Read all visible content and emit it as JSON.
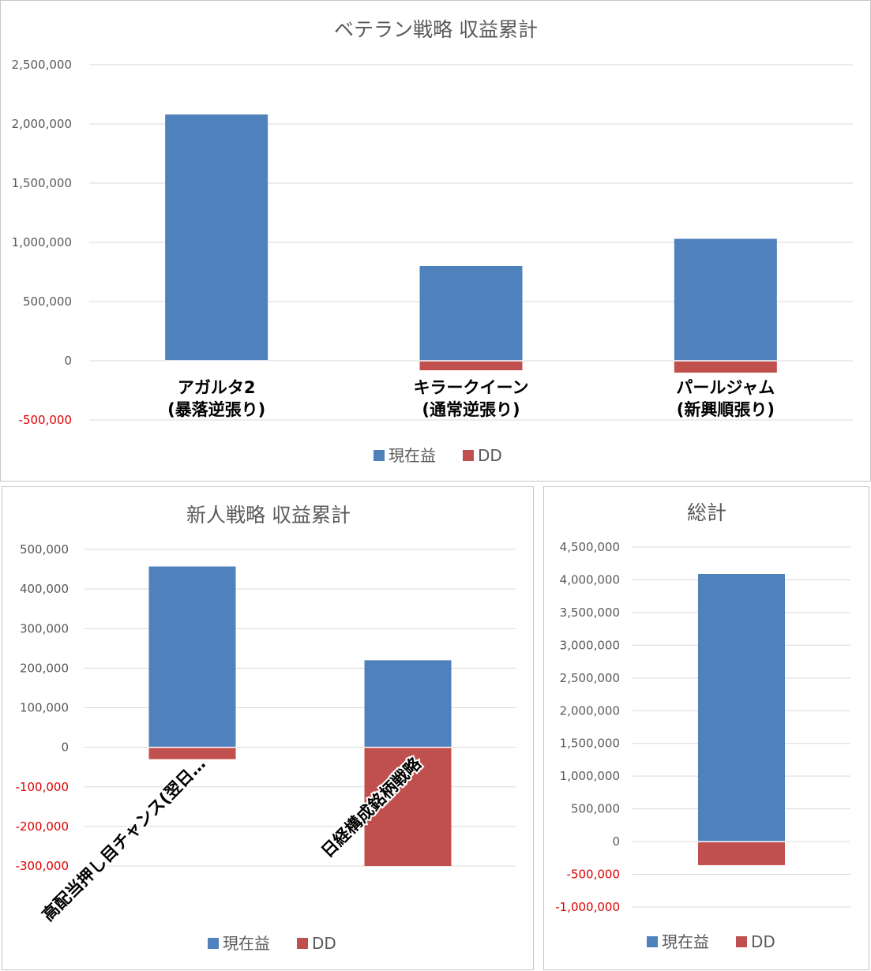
{
  "colors": {
    "current_profit": "#4f81bd",
    "dd": "#c0504d"
  },
  "chart_data": [
    {
      "id": "veteran",
      "type": "bar",
      "title": "ベテラン戦略 収益累計",
      "categories": [
        [
          "アガルタ2",
          "(暴落逆張り)"
        ],
        [
          "キラークイーン",
          "(通常逆張り)"
        ],
        [
          "パールジャム",
          "(新興順張り)"
        ]
      ],
      "series": [
        {
          "name": "現在益",
          "values": [
            2080000,
            800000,
            1030000
          ]
        },
        {
          "name": "DD",
          "values": [
            0,
            -80000,
            -100000
          ]
        }
      ],
      "ylim": [
        -500000,
        2500000
      ],
      "yticks": [
        {
          "value": 2500000,
          "label": "2,500,000"
        },
        {
          "value": 2000000,
          "label": "2,000,000"
        },
        {
          "value": 1500000,
          "label": "1,500,000"
        },
        {
          "value": 1000000,
          "label": "1,000,000"
        },
        {
          "value": 500000,
          "label": "500,000"
        },
        {
          "value": 0,
          "label": "0"
        },
        {
          "value": -500000,
          "label": "-500,000"
        }
      ],
      "grid": true,
      "legend": "bottom"
    },
    {
      "id": "newcomer",
      "type": "bar",
      "title": "新人戦略 収益累計",
      "categories": [
        [
          "高配当押し目チャンス(翌日…"
        ],
        [
          "日経構成銘柄戦略"
        ]
      ],
      "series": [
        {
          "name": "現在益",
          "values": [
            457000,
            220000
          ]
        },
        {
          "name": "DD",
          "values": [
            -30000,
            -300000
          ]
        }
      ],
      "ylim": [
        -300000,
        500000
      ],
      "yticks": [
        {
          "value": 500000,
          "label": "500,000"
        },
        {
          "value": 400000,
          "label": "400,000"
        },
        {
          "value": 300000,
          "label": "300,000"
        },
        {
          "value": 200000,
          "label": "200,000"
        },
        {
          "value": 100000,
          "label": "100,000"
        },
        {
          "value": 0,
          "label": "0"
        },
        {
          "value": -100000,
          "label": "-100,000"
        },
        {
          "value": -200000,
          "label": "-200,000"
        },
        {
          "value": -300000,
          "label": "-300,000"
        }
      ],
      "grid": true,
      "legend": "bottom"
    },
    {
      "id": "total",
      "type": "bar",
      "title": "総計",
      "categories": [
        [
          ""
        ]
      ],
      "series": [
        {
          "name": "現在益",
          "values": [
            4090000
          ]
        },
        {
          "name": "DD",
          "values": [
            -360000
          ]
        }
      ],
      "ylim": [
        -1000000,
        4500000
      ],
      "yticks": [
        {
          "value": 4500000,
          "label": "4,500,000"
        },
        {
          "value": 4000000,
          "label": "4,000,000"
        },
        {
          "value": 3500000,
          "label": "3,500,000"
        },
        {
          "value": 3000000,
          "label": "3,000,000"
        },
        {
          "value": 2500000,
          "label": "2,500,000"
        },
        {
          "value": 2000000,
          "label": "2,000,000"
        },
        {
          "value": 1500000,
          "label": "1,500,000"
        },
        {
          "value": 1000000,
          "label": "1,000,000"
        },
        {
          "value": 500000,
          "label": "500,000"
        },
        {
          "value": 0,
          "label": "0"
        },
        {
          "value": -500000,
          "label": "-500,000"
        },
        {
          "value": -1000000,
          "label": "-1,000,000"
        }
      ],
      "grid": true,
      "legend": "bottom"
    }
  ]
}
